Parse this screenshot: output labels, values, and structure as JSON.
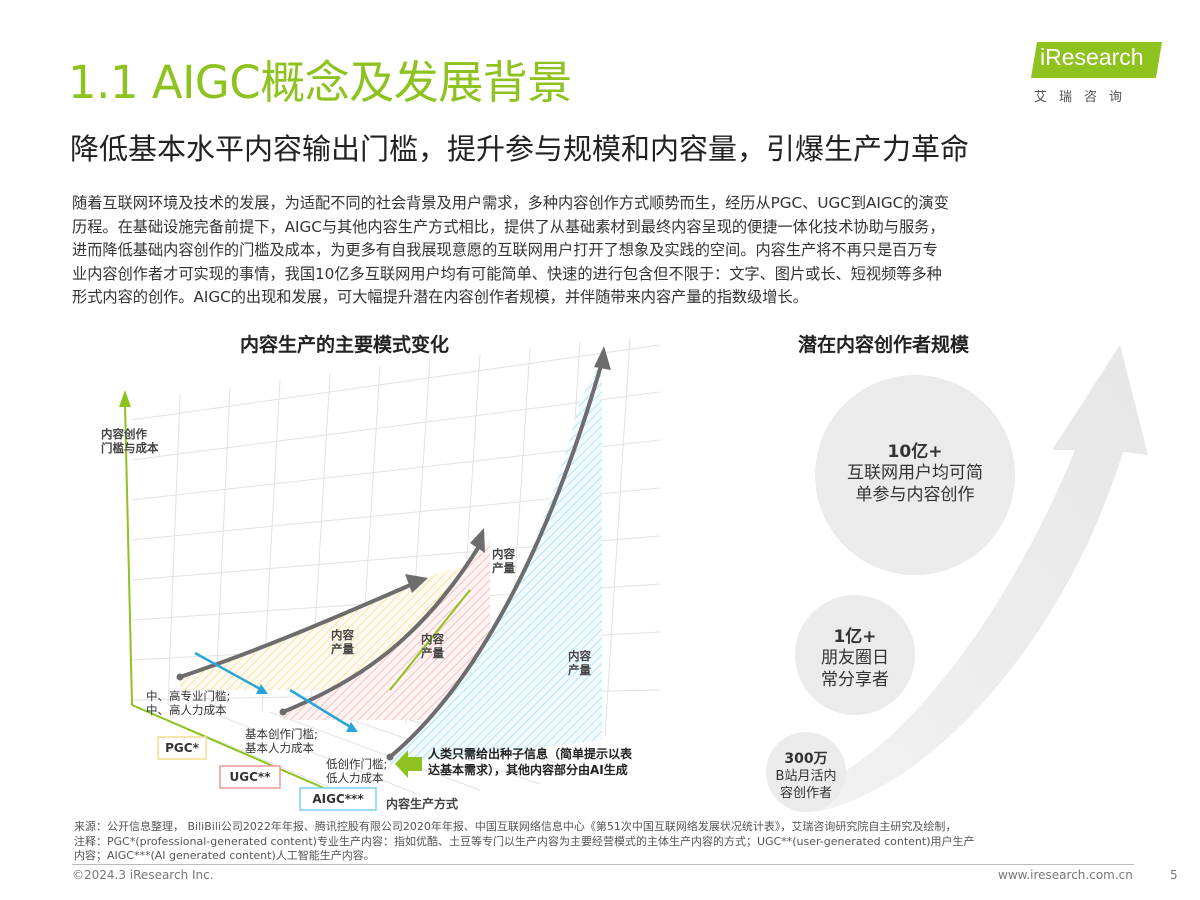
{
  "title": "1.1 AIGC概念及发展背景",
  "subtitle": "降低基本水平内容输出门槛，提升参与规模和内容量，引爆生产力革命",
  "logo": {
    "text": "iResearch",
    "cn": "艾瑞咨询"
  },
  "intro": [
    "随着互联网环境及技术的发展，为适配不同的社会背景及用户需求，多种内容创作方式顺势而生，经历从PGC、UGC到AIGC的演变",
    "历程。在基础设施完备前提下，AIGC与其他内容生产方式相比，提供了从基础素材到最终内容呈现的便捷一体化技术协助与服务，",
    "进而降低基础内容创作的门槛及成本，为更多有自我展现意愿的互联网用户打开了想象及实践的空间。内容生产将不再只是百万专",
    "业内容创作者才可实现的事情，我国10亿多互联网用户均有可能简单、快速的进行包含但不限于：文字、图片或长、短视频等多种",
    "形式内容的创作。AIGC的出现和发展，可大幅提升潜在内容创作者规模，并伴随带来内容产量的指数级增长。"
  ],
  "left_diagram": {
    "heading": "内容生产的主要模式变化",
    "y_axis_label": [
      "内容创作",
      "门槛与成本"
    ],
    "x_axis_label": "内容生产方式",
    "area_labels": [
      [
        "内容",
        "产量"
      ],
      [
        "内容",
        "产量"
      ],
      [
        "内容",
        "产量"
      ],
      [
        "内容",
        "产量"
      ]
    ],
    "cost_labels": [
      [
        "中、高专业门槛;",
        "中、高人力成本"
      ],
      [
        "基本创作门槛;",
        "基本人力成本"
      ],
      [
        "低创作门槛;",
        "低人力成本"
      ]
    ],
    "modes": [
      "PGC*",
      "UGC**",
      "AIGC***"
    ],
    "mode_colors": [
      "#f5dc8e",
      "#ef9a9a",
      "#7fd0ec"
    ],
    "callout": [
      "人类只需给出种子信息（简单提示以表",
      "达基本需求），其他内容部分由AI生成"
    ],
    "colors": {
      "green": "#8dc21f",
      "arrow": "#6d6d6d",
      "blue_arrow": "#2aa6d6"
    }
  },
  "right_diagram": {
    "heading": "潜在内容创作者规模",
    "circles": [
      {
        "big": "10亿+",
        "lines": [
          "互联网用户均可简",
          "单参与内容创作"
        ]
      },
      {
        "big": "1亿+",
        "lines": [
          "朋友圈日",
          "常分享者"
        ]
      },
      {
        "big": "300万",
        "lines": [
          "B站月活内",
          "容创作者"
        ]
      }
    ]
  },
  "footer": {
    "notes": [
      "来源：公开信息整理， BiliBili公司2022年年报、腾讯控股有限公司2020年年报、中国互联网络信息中心《第51次中国互联网络发展状况统计表》，艾瑞咨询研究院自主研究及绘制，",
      "注释：PGC*(professional-generated content)专业生产内容：指如优酷、土豆等专门以生产内容为主要经营模式的主体生产内容的方式；UGC**(user-generated content)用户生产",
      "内容；AIGC***(AI generated content)人工智能生产内容。"
    ],
    "copyright": "©2024.3 iResearch Inc.",
    "website": "www.iresearch.com.cn",
    "page": "5"
  }
}
